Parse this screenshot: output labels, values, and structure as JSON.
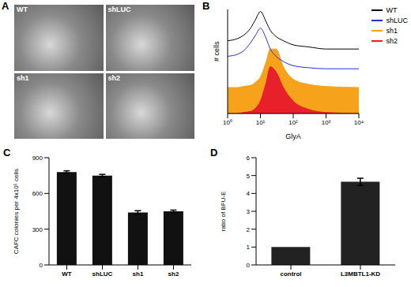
{
  "chart_data": [
    {
      "type": "image",
      "title": "A",
      "labels": [
        "WT",
        "shLUC",
        "sh1",
        "sh2"
      ]
    },
    {
      "type": "line",
      "title": "B",
      "x_label": "GlyA",
      "y_label": "# cells",
      "log": "x",
      "x": [
        1,
        2,
        3,
        5,
        7,
        10,
        15,
        20,
        30,
        50,
        100,
        300,
        1000,
        10000
      ],
      "xlim": [
        1,
        10000
      ],
      "xticks": [
        {
          "value": 1,
          "label": "10⁰"
        },
        {
          "value": 10,
          "label": "10¹"
        },
        {
          "value": 100,
          "label": "10²"
        },
        {
          "value": 1000,
          "label": "10³"
        },
        {
          "value": 10000,
          "label": "10⁴"
        }
      ],
      "ylim": [
        0,
        100
      ],
      "tick_labels": "x",
      "legend": "upper right",
      "series": [
        {
          "name": "WT",
          "color": "#000000",
          "type": "line",
          "values": [
            70,
            72,
            75,
            82,
            90,
            98,
            88,
            80,
            74,
            70,
            66,
            64,
            62,
            62
          ]
        },
        {
          "name": "shLUC",
          "color": "#2030e0",
          "type": "line",
          "values": [
            55,
            57,
            60,
            68,
            75,
            82,
            72,
            62,
            55,
            50,
            46,
            44,
            43,
            43
          ]
        },
        {
          "name": "sh1",
          "color": "#f7a21b",
          "type": "area",
          "values": [
            25,
            25,
            26,
            27,
            30,
            35,
            50,
            62,
            62,
            45,
            33,
            28,
            26,
            25
          ]
        },
        {
          "name": "sh2",
          "color": "#e8202a",
          "type": "area",
          "values": [
            0,
            0,
            1,
            2,
            5,
            12,
            30,
            45,
            40,
            25,
            12,
            4,
            1,
            0
          ]
        }
      ]
    },
    {
      "type": "bar",
      "title": "C",
      "y_label": "CAFC colonies per 4x10⁵ cells",
      "categories": [
        "WT",
        "shLUC",
        "sh1",
        "sh2"
      ],
      "values": [
        780,
        750,
        440,
        450
      ],
      "errors": [
        10,
        10,
        15,
        10
      ],
      "color": "#111111",
      "ylim": [
        0,
        900
      ],
      "yticks": [
        0,
        300,
        600,
        900
      ]
    },
    {
      "type": "bar",
      "title": "D",
      "y_label": "ratio of BFU-E",
      "categories": [
        "control",
        "L3MBTL1-KD"
      ],
      "values": [
        1,
        4.65
      ],
      "errors": [
        0,
        0.2
      ],
      "color": "#222222",
      "ylim": [
        0,
        6
      ],
      "yticks": [
        0,
        1,
        2,
        3,
        4,
        5,
        6
      ]
    }
  ]
}
